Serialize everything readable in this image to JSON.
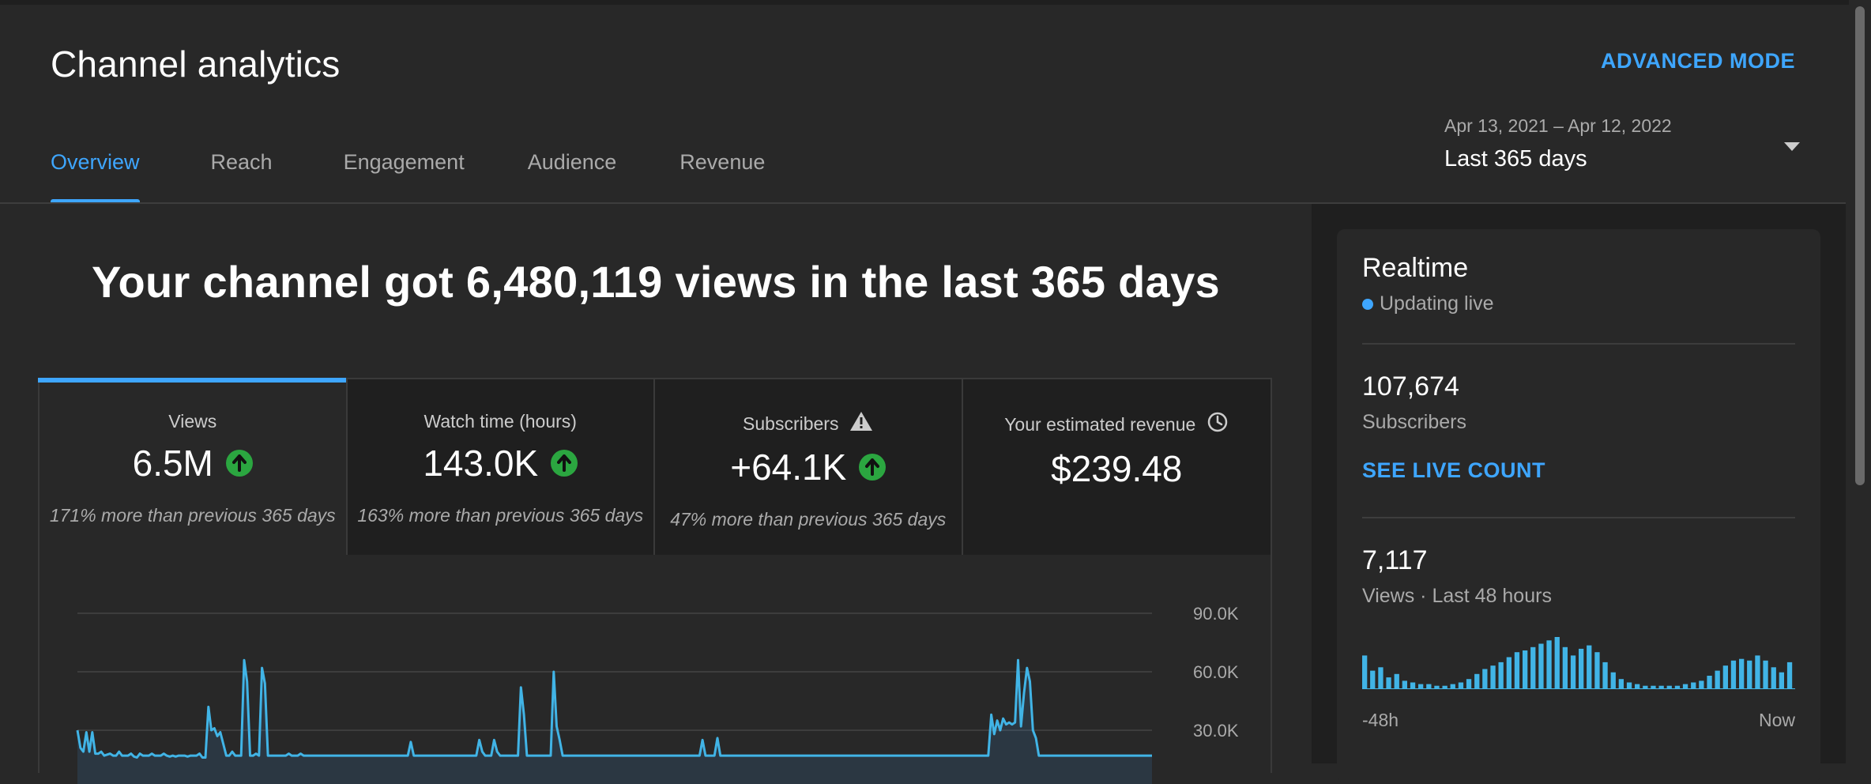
{
  "header": {
    "title": "Channel analytics",
    "advanced_mode": "ADVANCED MODE",
    "tabs": [
      {
        "label": "Overview"
      },
      {
        "label": "Reach"
      },
      {
        "label": "Engagement"
      },
      {
        "label": "Audience"
      },
      {
        "label": "Revenue"
      }
    ],
    "date_range": {
      "dates": "Apr 13, 2021 – Apr 12, 2022",
      "period": "Last 365 days"
    }
  },
  "main": {
    "headline": "Your channel got 6,480,119 views in the last 365 days",
    "cards": [
      {
        "label": "Views",
        "value": "6.5M",
        "delta": "171% more than previous 365 days"
      },
      {
        "label": "Watch time (hours)",
        "value": "143.0K",
        "delta": "163% more than previous 365 days"
      },
      {
        "label": "Subscribers",
        "value": "+64.1K",
        "delta": "47% more than previous 365 days"
      },
      {
        "label": "Your estimated revenue",
        "value": "$239.48",
        "delta": ""
      }
    ]
  },
  "chart_data": {
    "type": "line",
    "series": [
      {
        "values": [
          30000,
          21000,
          19000,
          29000,
          19000,
          29000,
          18000,
          18000,
          19000,
          17000,
          17500,
          18000,
          17000,
          17000,
          19000,
          17000,
          17000,
          17000,
          18000,
          16500,
          16000,
          18000,
          17000,
          17000,
          17000,
          18000,
          17000,
          17000,
          17000,
          18000,
          17000,
          16500,
          17000,
          16500,
          17000,
          17000,
          17000,
          16500,
          17000,
          17000,
          17000,
          18000,
          16000,
          16000,
          42000,
          30000,
          31000,
          27000,
          29000,
          23000,
          17000,
          17000,
          19000,
          17000,
          17000,
          17000,
          66000,
          55000,
          17000,
          17000,
          18000,
          17000,
          62000,
          54000,
          17000,
          17000,
          17000,
          17000,
          17000,
          17000,
          17000,
          18000,
          17000,
          17000,
          17000,
          18000,
          17000,
          17000,
          17000,
          17000,
          17000,
          17000,
          17000,
          17000,
          17000,
          17000,
          17000,
          17000,
          17000,
          17000,
          17000,
          17000,
          17000,
          17000,
          17000,
          17000,
          17000,
          17000,
          17000,
          17000,
          17000,
          17000,
          17000,
          17000,
          17000,
          17000,
          17000,
          17000,
          17000,
          17000,
          17000,
          17000,
          24000,
          17000,
          17000,
          17000,
          17000,
          17000,
          17000,
          17000,
          17000,
          17000,
          17000,
          17000,
          17000,
          17000,
          17000,
          17000,
          17000,
          17000,
          17000,
          17000,
          17000,
          17000,
          17000,
          25000,
          19000,
          17000,
          17000,
          17000,
          25000,
          19000,
          17000,
          17000,
          17000,
          17000,
          17000,
          17000,
          17000,
          52000,
          38000,
          17000,
          17000,
          17000,
          17000,
          17000,
          17000,
          17000,
          17000,
          17000,
          60000,
          32000,
          25000,
          17000,
          17000,
          17000,
          17000,
          17000,
          17000,
          17000,
          17000,
          17000,
          17000,
          17000,
          17000,
          17000,
          17000,
          17000,
          17000,
          17000,
          17000,
          17000,
          17000,
          17000,
          17000,
          17000,
          17000,
          17000,
          17000,
          17000,
          17000,
          17000,
          17000,
          17000,
          17000,
          17000,
          17000,
          17000,
          17000,
          17000,
          17000,
          17000,
          17000,
          17000,
          17000,
          17000,
          17000,
          17000,
          17000,
          17000,
          25000,
          17000,
          17000,
          17000,
          17000,
          26000,
          17000,
          17000,
          17000,
          17000,
          17000,
          17000,
          17000,
          17000,
          17000,
          17000,
          17000,
          17000,
          17000,
          17000,
          17000,
          17000,
          17000,
          17000,
          17000,
          17000,
          17000,
          17000,
          17000,
          17000,
          17000,
          17000,
          17000,
          17000,
          17000,
          17000,
          17000,
          17000,
          17000,
          17000,
          17000,
          17000,
          17000,
          17000,
          17000,
          17000,
          17000,
          17000,
          17000,
          17000,
          17000,
          17000,
          17000,
          17000,
          17000,
          17000,
          17000,
          17000,
          17000,
          17000,
          17000,
          17000,
          17000,
          17000,
          17000,
          17000,
          17000,
          17000,
          17000,
          17000,
          17000,
          17000,
          17000,
          17000,
          17000,
          17000,
          17000,
          17000,
          17000,
          17000,
          17000,
          17000,
          17000,
          17000,
          17000,
          17000,
          17000,
          17000,
          17000,
          17000,
          17000,
          17000,
          17000,
          17000,
          17000,
          17000,
          17000,
          38000,
          28000,
          35000,
          30000,
          36000,
          33000,
          34000,
          33000,
          34000,
          66000,
          32000,
          49000,
          62000,
          55000,
          30000,
          26000,
          17000,
          17000,
          17000,
          17000,
          17000,
          17000,
          17000,
          17000,
          17000,
          17000,
          17000,
          17000,
          17000,
          17000,
          17000,
          17000,
          17000,
          17000,
          17000,
          17000,
          17000,
          17000,
          17000,
          17000,
          17000,
          17000,
          17000,
          17000,
          17000,
          17000,
          17000,
          17000,
          17000,
          17000,
          17000,
          17000,
          17000,
          17000,
          17000
        ]
      }
    ],
    "ylim": [
      0,
      90000
    ],
    "y_ticks": [
      "90.0K",
      "60.0K",
      "30.0K"
    ],
    "grid": true
  },
  "realtime": {
    "title": "Realtime",
    "status": "Updating live",
    "subscribers_value": "107,674",
    "subscribers_label": "Subscribers",
    "see_live_count": "SEE LIVE COUNT",
    "views_value": "7,117",
    "views_label": "Views · Last 48 hours",
    "mini_chart": {
      "type": "bar",
      "values": [
        40,
        22,
        26,
        14,
        18,
        10,
        8,
        6,
        6,
        4,
        4,
        6,
        8,
        12,
        18,
        24,
        28,
        32,
        38,
        44,
        46,
        50,
        54,
        58,
        62,
        50,
        40,
        48,
        52,
        44,
        32,
        20,
        12,
        8,
        6,
        4,
        4,
        4,
        4,
        4,
        6,
        8,
        10,
        16,
        22,
        28,
        34,
        36,
        34,
        40,
        34,
        26,
        20,
        32
      ],
      "start_label": "-48h",
      "end_label": "Now"
    }
  }
}
